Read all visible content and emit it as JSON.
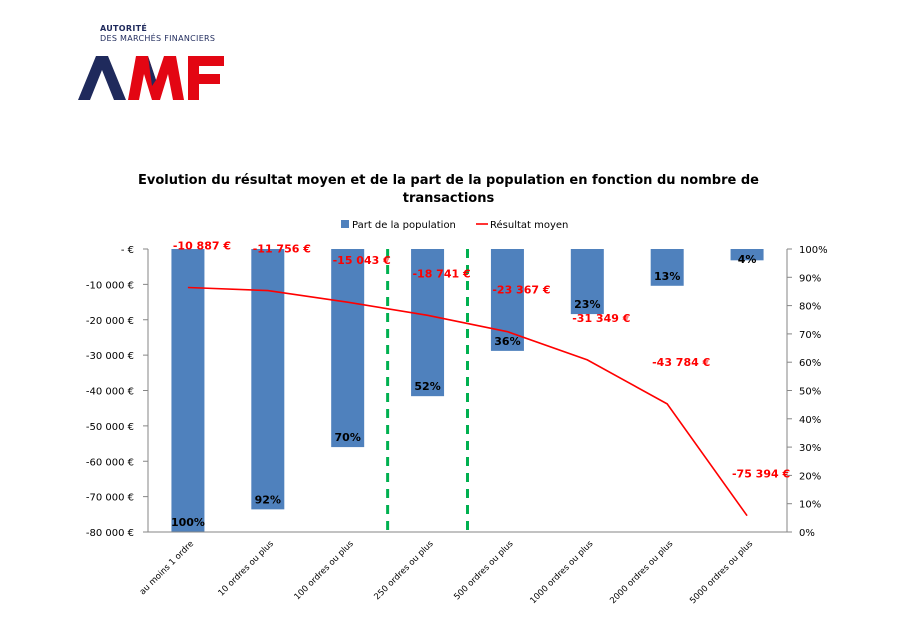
{
  "brand": {
    "tagline_1": "AUTORITÉ",
    "tagline_2": "DES MARCHÉS FINANCIERS",
    "logo_text": "AMF",
    "colors": {
      "navy": "#1f2a5c",
      "red": "#e30613"
    }
  },
  "chart_data": {
    "type": "bar+line",
    "title_line_1": "Evolution du résultat moyen et de la part de la population en fonction du nombre de",
    "title_line_2": "transactions",
    "categories": [
      "au moins 1 ordre",
      "10 ordres ou plus",
      "100 ordres ou plus",
      "250 ordres ou plus",
      "500 ordres ou plus",
      "1000 ordres ou plus",
      "2000 ordres ou plus",
      "5000 ordres ou plus"
    ],
    "series": [
      {
        "name": "Part de la population",
        "type": "bar",
        "axis": "right",
        "color": "#4f81bd",
        "values": [
          100,
          92,
          70,
          52,
          36,
          23,
          13,
          4
        ],
        "labels": [
          "100%",
          "92%",
          "70%",
          "52%",
          "36%",
          "23%",
          "13%",
          "4%"
        ]
      },
      {
        "name": "Résultat moyen",
        "type": "line",
        "axis": "left",
        "color": "#ff0000",
        "values": [
          -10887,
          -11756,
          -15043,
          -18741,
          -23367,
          -31349,
          -43784,
          -75394
        ],
        "labels": [
          "-10 887 €",
          "-11 756 €",
          "-15 043 €",
          "-18 741 €",
          "-23 367 €",
          "-31 349 €",
          "-43 784 €",
          "-75 394 €"
        ]
      }
    ],
    "left_axis": {
      "ylim": [
        -80000,
        0
      ],
      "ticks": [
        "-  €",
        "-10 000 €",
        "-20 000 €",
        "-30 000 €",
        "-40 000 €",
        "-50 000 €",
        "-60 000 €",
        "-70 000 €",
        "-80 000 €"
      ]
    },
    "right_axis": {
      "ylim": [
        0,
        100
      ],
      "ticks": [
        "100%",
        "90%",
        "80%",
        "70%",
        "60%",
        "50%",
        "40%",
        "30%",
        "20%",
        "10%",
        "0%"
      ]
    },
    "separators": {
      "color": "#00b050",
      "between_categories": [
        [
          2,
          3
        ],
        [
          3,
          4
        ]
      ]
    },
    "legend": "top"
  }
}
